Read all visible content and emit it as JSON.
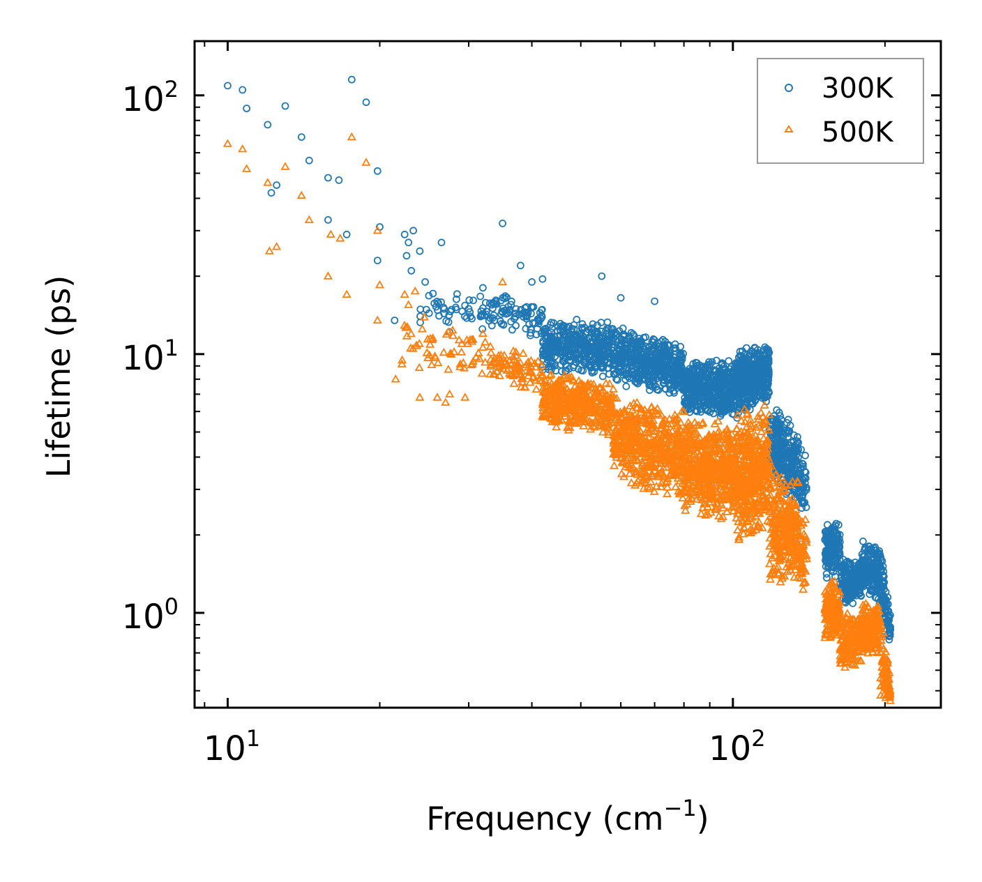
{
  "chart_data": {
    "type": "scatter",
    "title": "",
    "xlabel": "Frequency (cm",
    "xlabel_sup": "−1",
    "xlabel_close": ")",
    "ylabel": "Lifetime (ps)",
    "xscale": "log",
    "yscale": "log",
    "xlim": [
      8.6,
      258
    ],
    "ylim": [
      0.43,
      162
    ],
    "x_ticks": [
      {
        "value": 10,
        "base": "10",
        "exp": "1"
      },
      {
        "value": 100,
        "base": "10",
        "exp": "2"
      }
    ],
    "y_ticks": [
      {
        "value": 1,
        "base": "10",
        "exp": "0"
      },
      {
        "value": 10,
        "base": "10",
        "exp": "1"
      },
      {
        "value": 100,
        "base": "10",
        "exp": "2"
      }
    ],
    "legend_position": "top-right",
    "series": [
      {
        "name": "300K",
        "marker": "circle",
        "color": "#1f77b4",
        "explicit_points": [
          [
            10.0,
            109
          ],
          [
            10.7,
            105
          ],
          [
            10.9,
            89
          ],
          [
            12.0,
            77
          ],
          [
            12.2,
            42
          ],
          [
            12.5,
            45
          ],
          [
            13.0,
            91
          ],
          [
            14.0,
            69
          ],
          [
            14.5,
            56
          ],
          [
            15.8,
            48
          ],
          [
            16.6,
            47
          ],
          [
            15.8,
            33
          ],
          [
            17.2,
            29
          ],
          [
            17.6,
            115
          ],
          [
            18.8,
            94
          ],
          [
            19.8,
            51
          ],
          [
            20.0,
            31
          ],
          [
            19.8,
            23
          ],
          [
            22.4,
            29
          ],
          [
            23.3,
            30
          ],
          [
            22.6,
            24
          ],
          [
            22.8,
            27
          ],
          [
            23.1,
            21
          ],
          [
            24.0,
            25
          ],
          [
            26.5,
            27
          ],
          [
            35.0,
            32
          ],
          [
            38.0,
            22
          ],
          [
            40.0,
            19
          ],
          [
            42.0,
            19.5
          ],
          [
            55.0,
            20
          ],
          [
            60.0,
            16.5
          ],
          [
            70.0,
            16
          ],
          [
            21.4,
            13.5
          ],
          [
            24.6,
            19
          ]
        ],
        "bands": [
          {
            "x_start": 24,
            "x_end": 34,
            "n": 55,
            "y_low": 11.5,
            "y_high": 19,
            "y_low_end": 11.5,
            "y_high_end": 19
          },
          {
            "x_start": 33,
            "x_end": 42,
            "n": 80,
            "y_low": 13,
            "y_high": 18.5,
            "y_low_end": 11,
            "y_high_end": 16
          },
          {
            "x_start": 42,
            "x_end": 58,
            "n": 420,
            "y_low": 8.5,
            "y_high": 14,
            "y_low_end": 8.0,
            "y_high_end": 13.5
          },
          {
            "x_start": 58,
            "x_end": 80,
            "n": 520,
            "y_low": 7.5,
            "y_high": 13,
            "y_low_end": 6.8,
            "y_high_end": 11
          },
          {
            "x_start": 80,
            "x_end": 102,
            "n": 520,
            "y_low": 5.8,
            "y_high": 9.5,
            "y_low_end": 5.5,
            "y_high_end": 9.8
          },
          {
            "x_start": 102,
            "x_end": 118,
            "n": 420,
            "y_low": 5.5,
            "y_high": 10.5,
            "y_low_end": 6.5,
            "y_high_end": 11.2
          },
          {
            "x_start": 118,
            "x_end": 135,
            "n": 280,
            "y_low": 3.2,
            "y_high": 7,
            "y_low_end": 2.6,
            "y_high_end": 5.0
          },
          {
            "x_start": 135,
            "x_end": 140,
            "n": 50,
            "y_low": 2.3,
            "y_high": 4.6,
            "y_low_end": 2.2,
            "y_high_end": 4.0
          },
          {
            "x_start": 152,
            "x_end": 163,
            "n": 160,
            "y_low": 1.3,
            "y_high": 2.3,
            "y_low_end": 1.4,
            "y_high_end": 2.3
          },
          {
            "x_start": 163,
            "x_end": 180,
            "n": 180,
            "y_low": 1.05,
            "y_high": 1.65,
            "y_low_end": 1.1,
            "y_high_end": 1.6
          },
          {
            "x_start": 180,
            "x_end": 196,
            "n": 180,
            "y_low": 1.2,
            "y_high": 1.9,
            "y_low_end": 1.05,
            "y_high_end": 1.9
          },
          {
            "x_start": 196,
            "x_end": 205,
            "n": 90,
            "y_low": 0.8,
            "y_high": 1.8,
            "y_low_end": 0.75,
            "y_high_end": 1.0
          }
        ]
      },
      {
        "name": "500K",
        "marker": "triangle",
        "color": "#ff7f0e",
        "explicit_points": [
          [
            10.0,
            65
          ],
          [
            10.7,
            62
          ],
          [
            10.9,
            52
          ],
          [
            12.0,
            46
          ],
          [
            12.1,
            25
          ],
          [
            12.5,
            26
          ],
          [
            13.0,
            53
          ],
          [
            14.0,
            41
          ],
          [
            14.5,
            33
          ],
          [
            15.8,
            20
          ],
          [
            16.0,
            29
          ],
          [
            16.7,
            28
          ],
          [
            17.2,
            17
          ],
          [
            17.6,
            69
          ],
          [
            18.8,
            55
          ],
          [
            19.8,
            30
          ],
          [
            20.0,
            18.5
          ],
          [
            19.8,
            13.5
          ],
          [
            21.5,
            8
          ],
          [
            22.4,
            17
          ],
          [
            22.8,
            15.5
          ],
          [
            23.5,
            17.5
          ],
          [
            24.0,
            6.8
          ],
          [
            26.0,
            6.8
          ],
          [
            27.0,
            6.5
          ],
          [
            27.5,
            7
          ],
          [
            29.5,
            6.8
          ],
          [
            32.0,
            12
          ],
          [
            35.0,
            19
          ]
        ],
        "bands": [
          {
            "x_start": 22,
            "x_end": 33,
            "n": 60,
            "y_low": 8,
            "y_high": 15,
            "y_low_end": 8,
            "y_high_end": 12
          },
          {
            "x_start": 33,
            "x_end": 42,
            "n": 90,
            "y_low": 8,
            "y_high": 11,
            "y_low_end": 6.8,
            "y_high_end": 10
          },
          {
            "x_start": 42,
            "x_end": 58,
            "n": 420,
            "y_low": 5.0,
            "y_high": 8.8,
            "y_low_end": 4.7,
            "y_high_end": 8.0
          },
          {
            "x_start": 58,
            "x_end": 80,
            "n": 520,
            "y_low": 3.2,
            "y_high": 7.2,
            "y_low_end": 2.6,
            "y_high_end": 6.5
          },
          {
            "x_start": 80,
            "x_end": 102,
            "n": 520,
            "y_low": 2.4,
            "y_high": 5.8,
            "y_low_end": 2.2,
            "y_high_end": 5.5
          },
          {
            "x_start": 102,
            "x_end": 118,
            "n": 420,
            "y_low": 1.7,
            "y_high": 6.2,
            "y_low_end": 2.0,
            "y_high_end": 6.6
          },
          {
            "x_start": 118,
            "x_end": 135,
            "n": 280,
            "y_low": 1.2,
            "y_high": 4.2,
            "y_low_end": 1.3,
            "y_high_end": 3.2
          },
          {
            "x_start": 135,
            "x_end": 140,
            "n": 50,
            "y_low": 1.2,
            "y_high": 2.5,
            "y_low_end": 1.1,
            "y_high_end": 2.4
          },
          {
            "x_start": 152,
            "x_end": 163,
            "n": 160,
            "y_low": 0.75,
            "y_high": 1.35,
            "y_low_end": 0.8,
            "y_high_end": 1.35
          },
          {
            "x_start": 163,
            "x_end": 180,
            "n": 180,
            "y_low": 0.58,
            "y_high": 1.0,
            "y_low_end": 0.62,
            "y_high_end": 1.0
          },
          {
            "x_start": 180,
            "x_end": 196,
            "n": 180,
            "y_low": 0.68,
            "y_high": 1.1,
            "y_low_end": 0.68,
            "y_high_end": 1.15
          },
          {
            "x_start": 196,
            "x_end": 205,
            "n": 90,
            "y_low": 0.46,
            "y_high": 1.0,
            "y_low_end": 0.44,
            "y_high_end": 0.55
          }
        ]
      }
    ]
  }
}
